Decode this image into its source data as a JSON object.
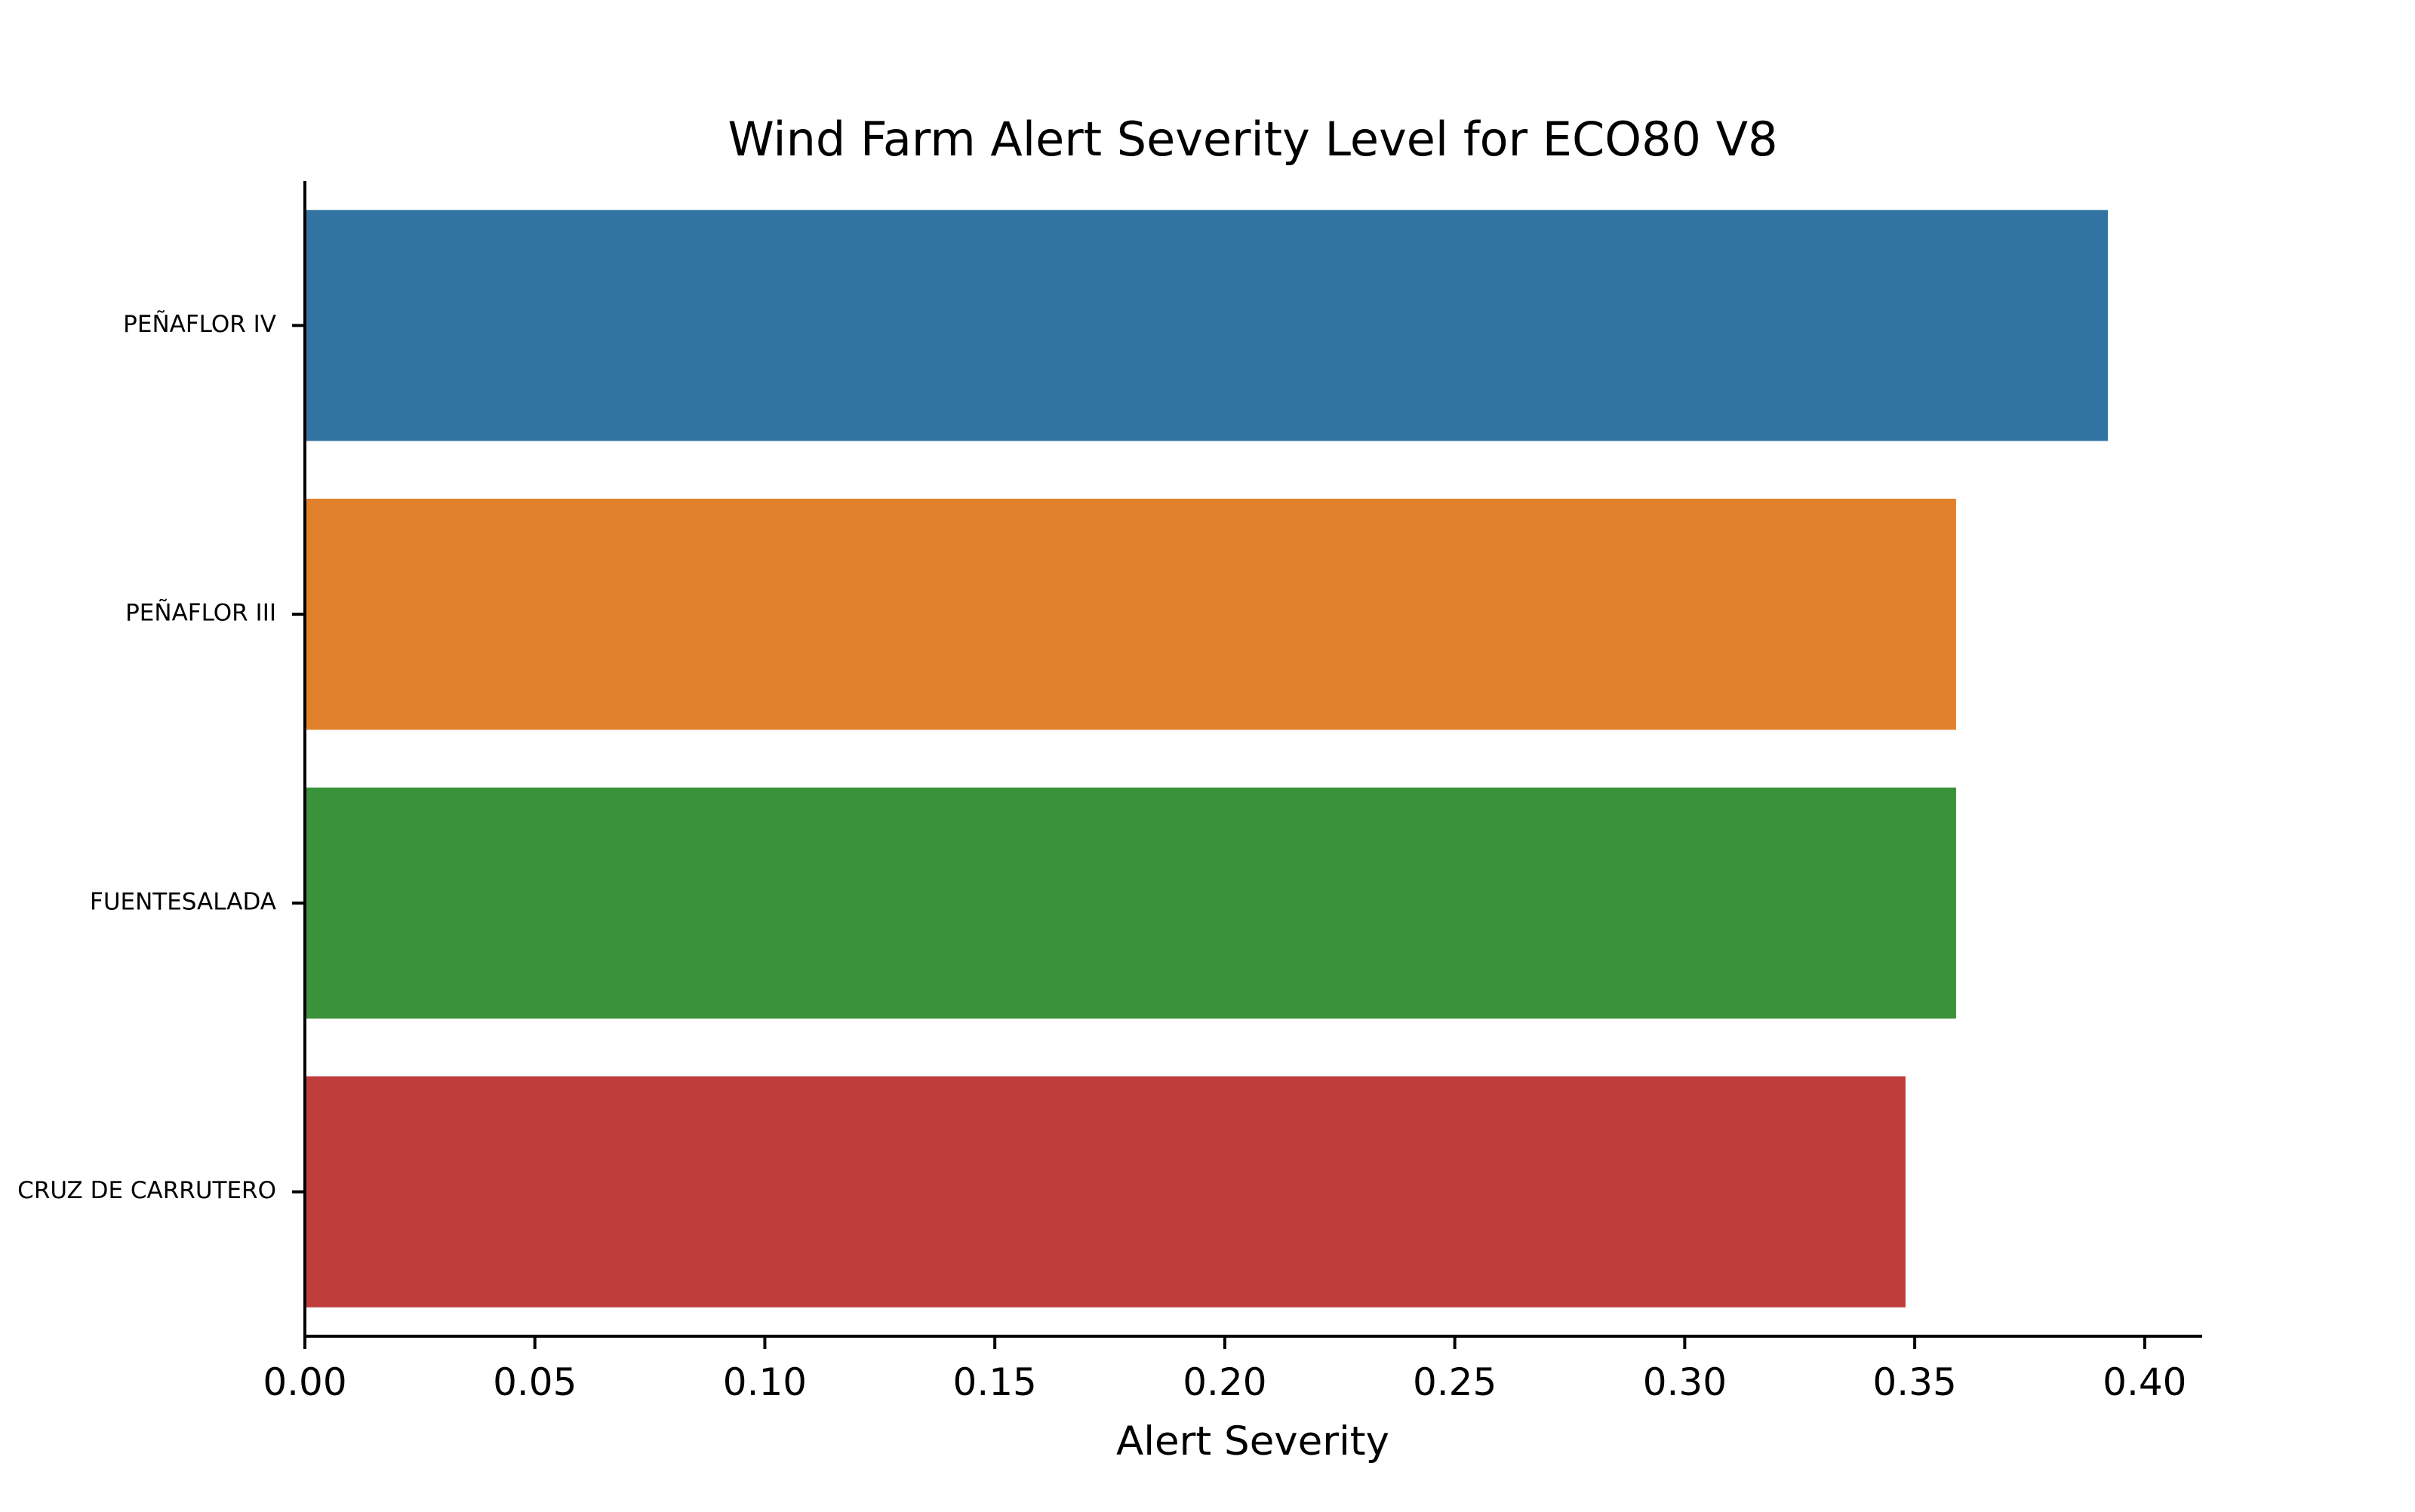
{
  "chart_data": {
    "type": "bar",
    "orientation": "horizontal",
    "title": "Wind Farm Alert Severity Level for ECO80 V8",
    "xlabel": "Alert Severity",
    "ylabel": "",
    "categories": [
      "PEÑAFLOR IV",
      "PEÑAFLOR III",
      "FUENTESALADA",
      "CRUZ DE CARRUTERO"
    ],
    "values": [
      0.392,
      0.359,
      0.359,
      0.348
    ],
    "colors": [
      "#3274a1",
      "#e1812c",
      "#3a923a",
      "#c03d3e"
    ],
    "xlim": [
      0,
      0.4125
    ],
    "xticks": [
      0.0,
      0.05,
      0.1,
      0.15,
      0.2,
      0.25,
      0.3,
      0.35,
      0.4
    ],
    "xtick_labels": [
      "0.00",
      "0.05",
      "0.10",
      "0.15",
      "0.20",
      "0.25",
      "0.30",
      "0.35",
      "0.40"
    ],
    "grid": false,
    "legend": "none"
  }
}
